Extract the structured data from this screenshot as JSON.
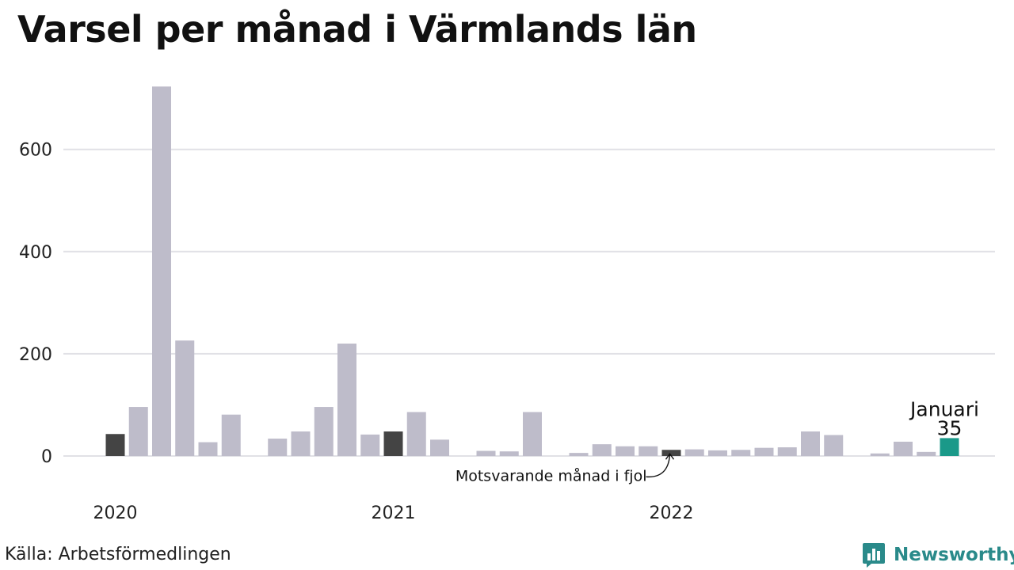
{
  "title": "Varsel per månad i Värmlands län",
  "source": "Källa: Arbetsförmedlingen",
  "brand": {
    "name": "Newsworthy",
    "icon": "newsworthy-logo-icon"
  },
  "colors": {
    "default_bar": "#bebcca",
    "same_month_bar": "#444444",
    "current_bar": "#1a9989",
    "grid": "#e1e1e6",
    "brand": "#2a8a8a"
  },
  "chart_data": {
    "type": "bar",
    "title": "Varsel per månad i Värmlands län",
    "xlabel": "",
    "ylabel": "",
    "ylim": [
      0,
      730
    ],
    "yticks": [
      0,
      200,
      400,
      600
    ],
    "grid": true,
    "legend": "none",
    "x_tick_labels": [
      "2020",
      "2021",
      "2022"
    ],
    "categories": [
      "2020-01",
      "2020-02",
      "2020-03",
      "2020-04",
      "2020-05",
      "2020-06",
      "2020-07",
      "2020-08",
      "2020-09",
      "2020-10",
      "2020-11",
      "2020-12",
      "2021-01",
      "2021-02",
      "2021-03",
      "2021-04",
      "2021-05",
      "2021-06",
      "2021-07",
      "2021-08",
      "2021-09",
      "2021-10",
      "2021-11",
      "2021-12",
      "2022-01",
      "2022-02",
      "2022-03",
      "2022-04",
      "2022-05",
      "2022-06",
      "2022-07",
      "2022-08",
      "2022-09",
      "2022-10",
      "2022-11",
      "2022-12",
      "2023-01"
    ],
    "values": [
      43,
      96,
      723,
      226,
      27,
      81,
      0,
      34,
      48,
      96,
      220,
      42,
      48,
      86,
      32,
      0,
      10,
      9,
      86,
      0,
      6,
      23,
      19,
      19,
      12,
      13,
      11,
      12,
      16,
      17,
      48,
      41,
      0,
      5,
      28,
      8,
      35
    ],
    "highlight": {
      "same_month": [
        "2020-01",
        "2021-01",
        "2022-01"
      ],
      "current": "2023-01"
    },
    "annotations": {
      "current_month": "Januari",
      "current_value": "35",
      "last_year": "Motsvarande månad i fjol"
    }
  }
}
